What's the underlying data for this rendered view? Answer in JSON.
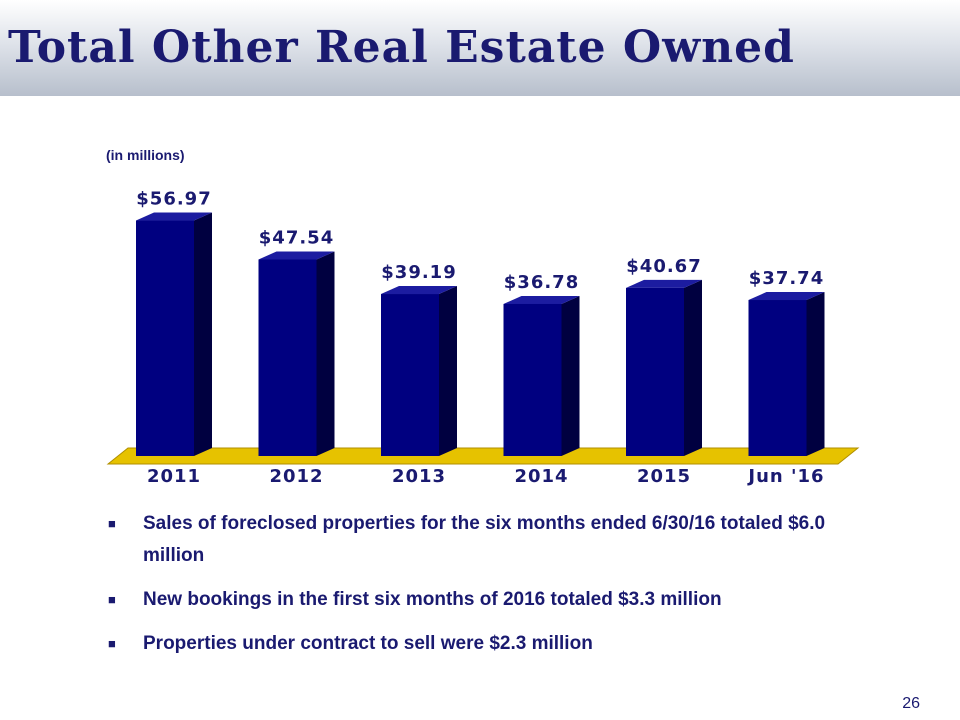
{
  "title": "Total Other Real Estate Owned",
  "page_number": "26",
  "chart_data": {
    "type": "bar",
    "units_note": "(in millions)",
    "categories": [
      "2011",
      "2012",
      "2013",
      "2014",
      "2015",
      "Jun '16"
    ],
    "values": [
      56.97,
      47.54,
      39.19,
      36.78,
      40.67,
      37.74
    ],
    "value_labels": [
      "$56.97",
      "$47.54",
      "$39.19",
      "$36.78",
      "$40.67",
      "$37.74"
    ],
    "ylim": [
      0,
      60
    ],
    "grid": false,
    "colors": {
      "bar_front": "#000080",
      "bar_side": "#000040",
      "bar_top": "#1c1ca0",
      "floor": "#e6c200",
      "label": "#1a1a70"
    }
  },
  "bullets": [
    "Sales of foreclosed properties for the six months ended 6/30/16 totaled $6.0 million",
    "New bookings in the first six months of 2016 totaled $3.3 million",
    "Properties under contract to sell were $2.3 million"
  ],
  "bullet_marker": "■"
}
